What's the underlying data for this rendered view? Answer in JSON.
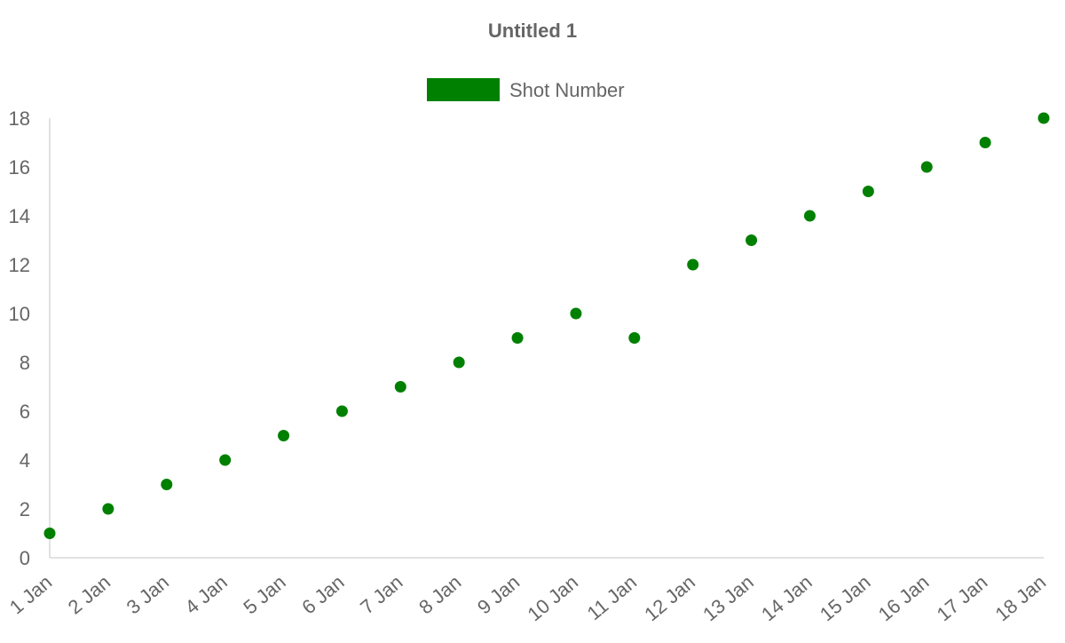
{
  "chart_data": {
    "type": "scatter",
    "title": "Untitled 1",
    "xlabel": "",
    "ylabel": "",
    "legend_position": "top-center",
    "grid": false,
    "categories": [
      "1 Jan",
      "2 Jan",
      "3 Jan",
      "4 Jan",
      "5 Jan",
      "6 Jan",
      "7 Jan",
      "8 Jan",
      "9 Jan",
      "10 Jan",
      "11 Jan",
      "12 Jan",
      "13 Jan",
      "14 Jan",
      "15 Jan",
      "16 Jan",
      "17 Jan",
      "18 Jan"
    ],
    "ylim": [
      0,
      18
    ],
    "yticks": [
      0,
      2,
      4,
      6,
      8,
      10,
      12,
      14,
      16,
      18
    ],
    "series": [
      {
        "name": "Shot Number",
        "color": "#008000",
        "values": [
          1,
          2,
          3,
          4,
          5,
          6,
          7,
          8,
          9,
          10,
          9,
          12,
          13,
          14,
          15,
          16,
          17,
          18
        ]
      }
    ],
    "colors": {
      "text": "#666666",
      "axis": "#d9d9d9"
    }
  }
}
